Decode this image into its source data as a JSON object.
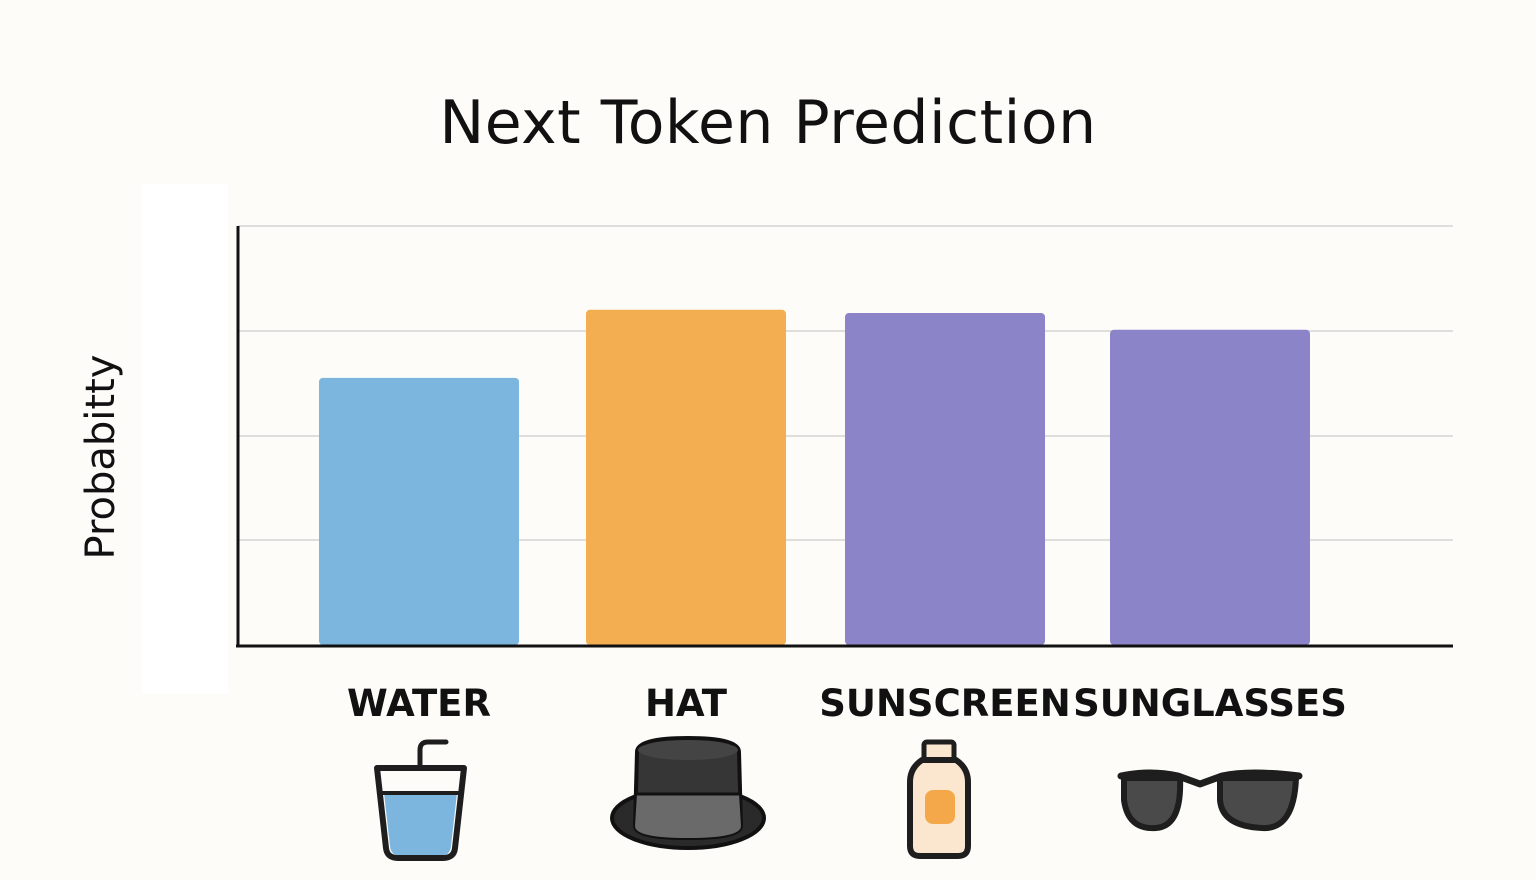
{
  "chart_data": {
    "type": "bar",
    "title": "Next Token Prediction",
    "xlabel": "",
    "ylabel": "Probabitty",
    "ylim": [
      0,
      4
    ],
    "grid": true,
    "categories": [
      "WATER",
      "HAT",
      "SUNSCREEN",
      "SUNGLASSES"
    ],
    "values": [
      2.55,
      3.2,
      3.17,
      3.01
    ],
    "colors": [
      "#7cb6de",
      "#f4ae52",
      "#8c84c8",
      "#8c84c8"
    ],
    "icons": [
      "water-cup-icon",
      "top-hat-icon",
      "sunscreen-bottle-icon",
      "sunglasses-icon"
    ]
  }
}
